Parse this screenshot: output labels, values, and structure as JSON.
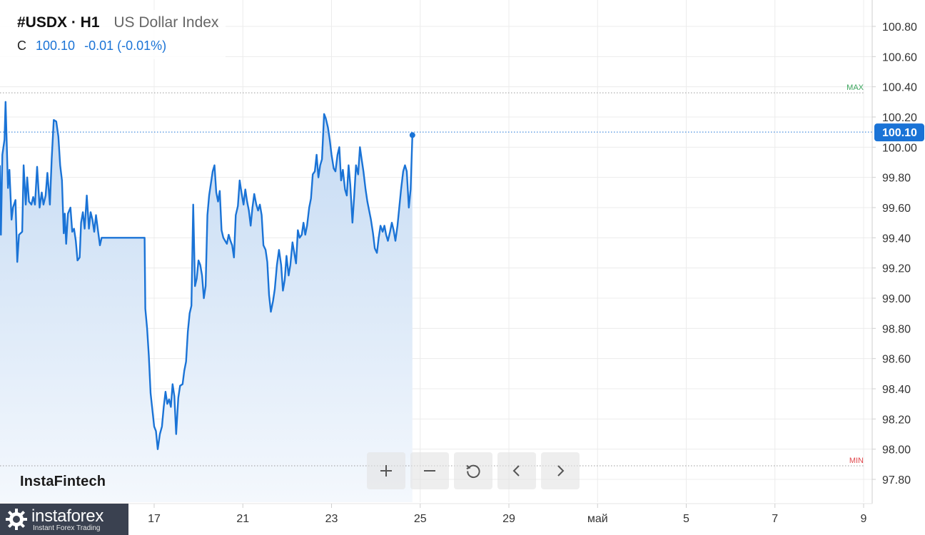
{
  "header": {
    "symbol_label": "#USDX · H1",
    "instrument_name": "US Dollar Index",
    "price_prefix": "C",
    "last_price": "100.10",
    "change": "-0.01 (-0.01%)"
  },
  "brand": {
    "wordmark": "InstaFintech",
    "logo_name": "instaforex",
    "logo_tagline": "Instant Forex Trading"
  },
  "colors": {
    "line": "#1a73d6",
    "area_top": "#c4daf3",
    "max_label": "#3aa55c",
    "min_label": "#e0474c",
    "price_tag": "#1a73d6",
    "logo_bg": "#3a4150"
  },
  "controls": {
    "zoom_in": "plus-icon",
    "zoom_out": "minus-icon",
    "reset": "reset-icon",
    "scroll_left": "chevron-left-icon",
    "scroll_right": "chevron-right-icon"
  },
  "chart_data": {
    "type": "area",
    "ylim": [
      97.7,
      100.85
    ],
    "y_ticks": [
      "100.80",
      "100.60",
      "100.40",
      "100.20",
      "100.00",
      "99.80",
      "99.60",
      "99.40",
      "99.20",
      "99.00",
      "98.80",
      "98.60",
      "98.40",
      "98.20",
      "98.00",
      "97.80"
    ],
    "x_ticks": [
      {
        "label": "17",
        "x": 16
      },
      {
        "label": "21",
        "x": 41
      },
      {
        "label": "23",
        "x": 66
      },
      {
        "label": "25",
        "x": 91
      },
      {
        "label": "29",
        "x": 116
      },
      {
        "label": "май",
        "x": 141
      },
      {
        "label": "5",
        "x": 166
      },
      {
        "label": "7",
        "x": 191
      },
      {
        "label": "9",
        "x": 216
      }
    ],
    "xlim": [
      -27.5,
      216.0
    ],
    "max_label": "MAX",
    "max_value": 100.36,
    "min_label": "MIN",
    "min_value": 97.89,
    "last_value_label": "100.10",
    "last_value": 100.1,
    "grid": true,
    "series_points": [
      [
        -27.5,
        99.88
      ],
      [
        -27.2,
        99.42
      ],
      [
        -26.8,
        99.95
      ],
      [
        -26.2,
        100.05
      ],
      [
        -25.9,
        100.3
      ],
      [
        -25.2,
        99.73
      ],
      [
        -24.8,
        99.85
      ],
      [
        -24.2,
        99.52
      ],
      [
        -23.8,
        99.6
      ],
      [
        -23.1,
        99.65
      ],
      [
        -22.6,
        99.24
      ],
      [
        -22.1,
        99.42
      ],
      [
        -21.2,
        99.44
      ],
      [
        -20.8,
        99.88
      ],
      [
        -20.2,
        99.62
      ],
      [
        -19.8,
        99.8
      ],
      [
        -19.3,
        99.64
      ],
      [
        -18.6,
        99.62
      ],
      [
        -18.1,
        99.67
      ],
      [
        -17.6,
        99.62
      ],
      [
        -17.0,
        99.87
      ],
      [
        -16.3,
        99.6
      ],
      [
        -15.7,
        99.7
      ],
      [
        -15.2,
        99.62
      ],
      [
        -14.6,
        99.68
      ],
      [
        -14.1,
        99.83
      ],
      [
        -13.4,
        99.62
      ],
      [
        -12.9,
        99.92
      ],
      [
        -12.3,
        100.18
      ],
      [
        -11.6,
        100.17
      ],
      [
        -11.0,
        100.07
      ],
      [
        -10.5,
        99.88
      ],
      [
        -10.0,
        99.78
      ],
      [
        -9.5,
        99.43
      ],
      [
        -9.2,
        99.56
      ],
      [
        -8.8,
        99.36
      ],
      [
        -8.3,
        99.56
      ],
      [
        -7.6,
        99.6
      ],
      [
        -7.1,
        99.44
      ],
      [
        -6.6,
        99.46
      ],
      [
        -6.1,
        99.38
      ],
      [
        -5.6,
        99.25
      ],
      [
        -5.0,
        99.27
      ],
      [
        -4.6,
        99.5
      ],
      [
        -4.1,
        99.57
      ],
      [
        -3.6,
        99.46
      ],
      [
        -3.0,
        99.68
      ],
      [
        -2.4,
        99.46
      ],
      [
        -1.9,
        99.57
      ],
      [
        -1.4,
        99.52
      ],
      [
        -0.9,
        99.44
      ],
      [
        -0.4,
        99.55
      ],
      [
        0.2,
        99.44
      ],
      [
        0.7,
        99.35
      ],
      [
        1.2,
        99.4
      ],
      [
        2.0,
        99.4
      ],
      [
        4.0,
        99.4
      ],
      [
        6.0,
        99.4
      ],
      [
        8.0,
        99.4
      ],
      [
        10.0,
        99.4
      ],
      [
        12.0,
        99.4
      ],
      [
        13.3,
        99.4
      ],
      [
        13.5,
        98.93
      ],
      [
        14.0,
        98.8
      ],
      [
        14.5,
        98.62
      ],
      [
        15.0,
        98.37
      ],
      [
        15.5,
        98.26
      ],
      [
        16.0,
        98.15
      ],
      [
        16.5,
        98.12
      ],
      [
        17.0,
        98.0
      ],
      [
        17.6,
        98.1
      ],
      [
        18.2,
        98.15
      ],
      [
        18.7,
        98.28
      ],
      [
        19.2,
        98.38
      ],
      [
        19.7,
        98.3
      ],
      [
        20.2,
        98.33
      ],
      [
        20.7,
        98.28
      ],
      [
        21.2,
        98.43
      ],
      [
        21.7,
        98.35
      ],
      [
        22.2,
        98.1
      ],
      [
        22.8,
        98.34
      ],
      [
        23.3,
        98.42
      ],
      [
        24.0,
        98.43
      ],
      [
        24.5,
        98.52
      ],
      [
        25.0,
        98.58
      ],
      [
        25.5,
        98.78
      ],
      [
        26.0,
        98.9
      ],
      [
        26.5,
        98.95
      ],
      [
        27.0,
        99.62
      ],
      [
        27.5,
        99.08
      ],
      [
        28.0,
        99.13
      ],
      [
        28.5,
        99.25
      ],
      [
        29.0,
        99.22
      ],
      [
        29.5,
        99.15
      ],
      [
        30.0,
        99.0
      ],
      [
        30.5,
        99.08
      ],
      [
        31.0,
        99.55
      ],
      [
        31.5,
        99.68
      ],
      [
        32.0,
        99.76
      ],
      [
        32.5,
        99.84
      ],
      [
        33.0,
        99.88
      ],
      [
        33.5,
        99.7
      ],
      [
        34.0,
        99.64
      ],
      [
        34.5,
        99.71
      ],
      [
        35.0,
        99.45
      ],
      [
        35.5,
        99.4
      ],
      [
        36.0,
        99.38
      ],
      [
        36.5,
        99.36
      ],
      [
        37.0,
        99.42
      ],
      [
        37.5,
        99.38
      ],
      [
        38.0,
        99.35
      ],
      [
        38.5,
        99.27
      ],
      [
        39.0,
        99.55
      ],
      [
        39.6,
        99.61
      ],
      [
        40.1,
        99.78
      ],
      [
        40.6,
        99.7
      ],
      [
        41.2,
        99.62
      ],
      [
        41.7,
        99.72
      ],
      [
        42.2,
        99.64
      ],
      [
        42.7,
        99.58
      ],
      [
        43.2,
        99.48
      ],
      [
        43.7,
        99.6
      ],
      [
        44.2,
        99.69
      ],
      [
        44.8,
        99.62
      ],
      [
        45.3,
        99.58
      ],
      [
        45.8,
        99.62
      ],
      [
        46.3,
        99.55
      ],
      [
        46.8,
        99.35
      ],
      [
        47.4,
        99.32
      ],
      [
        47.9,
        99.24
      ],
      [
        48.4,
        99.02
      ],
      [
        48.9,
        98.91
      ],
      [
        49.5,
        98.98
      ],
      [
        50.0,
        99.06
      ],
      [
        50.6,
        99.22
      ],
      [
        51.2,
        99.32
      ],
      [
        51.8,
        99.22
      ],
      [
        52.3,
        99.05
      ],
      [
        52.8,
        99.12
      ],
      [
        53.3,
        99.28
      ],
      [
        53.9,
        99.15
      ],
      [
        54.4,
        99.22
      ],
      [
        55.0,
        99.37
      ],
      [
        55.5,
        99.3
      ],
      [
        56.0,
        99.23
      ],
      [
        56.5,
        99.45
      ],
      [
        57.0,
        99.4
      ],
      [
        57.6,
        99.42
      ],
      [
        58.1,
        99.5
      ],
      [
        58.6,
        99.42
      ],
      [
        59.1,
        99.48
      ],
      [
        59.7,
        99.6
      ],
      [
        60.2,
        99.66
      ],
      [
        60.7,
        99.82
      ],
      [
        61.3,
        99.84
      ],
      [
        61.8,
        99.95
      ],
      [
        62.3,
        99.8
      ],
      [
        62.8,
        99.88
      ],
      [
        63.3,
        99.92
      ],
      [
        63.9,
        100.22
      ],
      [
        64.4,
        100.19
      ],
      [
        65.0,
        100.13
      ],
      [
        65.5,
        100.05
      ],
      [
        66.0,
        99.95
      ],
      [
        66.6,
        99.86
      ],
      [
        67.1,
        99.84
      ],
      [
        67.7,
        99.95
      ],
      [
        68.2,
        100.0
      ],
      [
        68.7,
        99.78
      ],
      [
        69.2,
        99.85
      ],
      [
        69.8,
        99.72
      ],
      [
        70.3,
        99.68
      ],
      [
        70.8,
        99.88
      ],
      [
        71.3,
        99.75
      ],
      [
        71.9,
        99.5
      ],
      [
        72.4,
        99.68
      ],
      [
        72.9,
        99.88
      ],
      [
        73.5,
        99.82
      ],
      [
        74.0,
        100.0
      ],
      [
        74.5,
        99.92
      ],
      [
        75.0,
        99.84
      ],
      [
        75.6,
        99.72
      ],
      [
        76.1,
        99.64
      ],
      [
        76.6,
        99.58
      ],
      [
        77.1,
        99.52
      ],
      [
        77.7,
        99.43
      ],
      [
        78.2,
        99.33
      ],
      [
        78.8,
        99.3
      ],
      [
        79.3,
        99.4
      ],
      [
        79.8,
        99.48
      ],
      [
        80.4,
        99.44
      ],
      [
        80.9,
        99.48
      ],
      [
        81.4,
        99.42
      ],
      [
        81.9,
        99.38
      ],
      [
        82.5,
        99.44
      ],
      [
        83.0,
        99.5
      ],
      [
        83.5,
        99.45
      ],
      [
        84.0,
        99.38
      ],
      [
        84.6,
        99.48
      ],
      [
        85.1,
        99.6
      ],
      [
        85.6,
        99.72
      ],
      [
        86.2,
        99.84
      ],
      [
        86.7,
        99.88
      ],
      [
        87.2,
        99.84
      ],
      [
        87.8,
        99.6
      ],
      [
        88.3,
        99.72
      ],
      [
        88.8,
        100.08
      ]
    ]
  }
}
